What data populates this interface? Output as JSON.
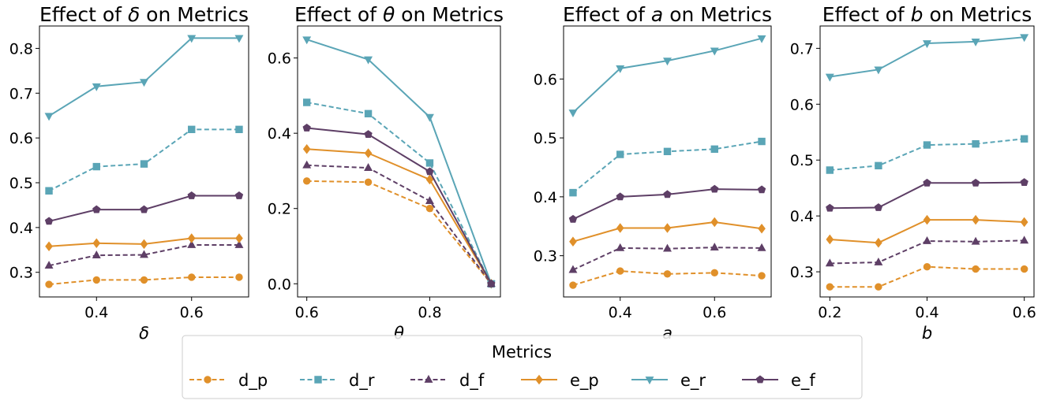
{
  "legend": {
    "title": "Metrics",
    "position": "bottom-center"
  },
  "series_styles": [
    {
      "name": "d_p",
      "color": "#E0902A",
      "dashed": true,
      "marker": "circle"
    },
    {
      "name": "d_r",
      "color": "#5AA5B6",
      "dashed": true,
      "marker": "square"
    },
    {
      "name": "d_f",
      "color": "#5E3F66",
      "dashed": true,
      "marker": "triangle-up"
    },
    {
      "name": "e_p",
      "color": "#E0902A",
      "dashed": false,
      "marker": "diamond"
    },
    {
      "name": "e_r",
      "color": "#5AA5B6",
      "dashed": false,
      "marker": "triangle-down"
    },
    {
      "name": "e_f",
      "color": "#5E3F66",
      "dashed": false,
      "marker": "pentagon"
    }
  ],
  "chart_data": [
    {
      "type": "line",
      "title_prefix": "Effect of ",
      "title_symbol": "δ",
      "title_suffix": " on Metrics",
      "xlabel": "δ",
      "x": [
        0.3,
        0.4,
        0.5,
        0.6,
        0.7
      ],
      "xlim": [
        0.28,
        0.72
      ],
      "ylim": [
        0.245,
        0.85
      ],
      "xticks": [
        0.4,
        0.6
      ],
      "xtick_labels": [
        "0.4",
        "0.6"
      ],
      "yticks": [
        0.3,
        0.4,
        0.5,
        0.6,
        0.7,
        0.8
      ],
      "ytick_labels": [
        "0.3",
        "0.4",
        "0.5",
        "0.6",
        "0.7",
        "0.8"
      ],
      "series": [
        {
          "name": "d_p",
          "values": [
            0.273,
            0.283,
            0.283,
            0.289,
            0.289
          ]
        },
        {
          "name": "d_r",
          "values": [
            0.482,
            0.536,
            0.542,
            0.619,
            0.619
          ]
        },
        {
          "name": "d_f",
          "values": [
            0.315,
            0.338,
            0.339,
            0.361,
            0.361
          ]
        },
        {
          "name": "e_p",
          "values": [
            0.358,
            0.365,
            0.363,
            0.376,
            0.376
          ]
        },
        {
          "name": "e_r",
          "values": [
            0.649,
            0.715,
            0.725,
            0.823,
            0.823
          ]
        },
        {
          "name": "e_f",
          "values": [
            0.414,
            0.44,
            0.44,
            0.471,
            0.471
          ]
        }
      ]
    },
    {
      "type": "line",
      "title_prefix": "Effect of ",
      "title_symbol": "θ",
      "title_suffix": " on Metrics",
      "xlabel": "θ",
      "x": [
        0.6,
        0.7,
        0.8,
        0.9
      ],
      "xlim": [
        0.585,
        0.915
      ],
      "ylim": [
        -0.035,
        0.685
      ],
      "xticks": [
        0.6,
        0.8
      ],
      "xtick_labels": [
        "0.6",
        "0.8"
      ],
      "yticks": [
        0.0,
        0.2,
        0.4,
        0.6
      ],
      "ytick_labels": [
        "0.0",
        "0.2",
        "0.4",
        "0.6"
      ],
      "series": [
        {
          "name": "d_p",
          "values": [
            0.273,
            0.27,
            0.2,
            0.0
          ]
        },
        {
          "name": "d_r",
          "values": [
            0.482,
            0.452,
            0.321,
            0.0
          ]
        },
        {
          "name": "d_f",
          "values": [
            0.315,
            0.308,
            0.22,
            0.0
          ]
        },
        {
          "name": "e_p",
          "values": [
            0.358,
            0.347,
            0.277,
            0.0
          ]
        },
        {
          "name": "e_r",
          "values": [
            0.649,
            0.596,
            0.443,
            0.0
          ]
        },
        {
          "name": "e_f",
          "values": [
            0.414,
            0.397,
            0.298,
            0.0
          ]
        }
      ]
    },
    {
      "type": "line",
      "title_prefix": "Effect of ",
      "title_symbol": "a",
      "title_suffix": " on Metrics",
      "xlabel": "a",
      "x": [
        0.3,
        0.4,
        0.5,
        0.6,
        0.7
      ],
      "xlim": [
        0.28,
        0.72
      ],
      "ylim": [
        0.23,
        0.69
      ],
      "xticks": [
        0.4,
        0.6
      ],
      "xtick_labels": [
        "0.4",
        "0.6"
      ],
      "yticks": [
        0.3,
        0.4,
        0.5,
        0.6
      ],
      "ytick_labels": [
        "0.3",
        "0.4",
        "0.5",
        "0.6"
      ],
      "series": [
        {
          "name": "d_p",
          "values": [
            0.25,
            0.274,
            0.269,
            0.271,
            0.266
          ]
        },
        {
          "name": "d_r",
          "values": [
            0.407,
            0.472,
            0.477,
            0.481,
            0.494
          ]
        },
        {
          "name": "d_f",
          "values": [
            0.276,
            0.313,
            0.312,
            0.314,
            0.313
          ]
        },
        {
          "name": "e_p",
          "values": [
            0.324,
            0.347,
            0.347,
            0.357,
            0.346
          ]
        },
        {
          "name": "e_r",
          "values": [
            0.543,
            0.618,
            0.631,
            0.648,
            0.669
          ]
        },
        {
          "name": "e_f",
          "values": [
            0.362,
            0.4,
            0.404,
            0.413,
            0.412
          ]
        }
      ]
    },
    {
      "type": "line",
      "title_prefix": "Effect of ",
      "title_symbol": "b",
      "title_suffix": " on Metrics",
      "xlabel": "b",
      "x": [
        0.2,
        0.3,
        0.4,
        0.5,
        0.6
      ],
      "xlim": [
        0.18,
        0.62
      ],
      "ylim": [
        0.255,
        0.74
      ],
      "xticks": [
        0.2,
        0.4,
        0.6
      ],
      "xtick_labels": [
        "0.2",
        "0.4",
        "0.6"
      ],
      "yticks": [
        0.3,
        0.4,
        0.5,
        0.6,
        0.7
      ],
      "ytick_labels": [
        "0.3",
        "0.4",
        "0.5",
        "0.6",
        "0.7"
      ],
      "series": [
        {
          "name": "d_p",
          "values": [
            0.273,
            0.273,
            0.309,
            0.305,
            0.305
          ]
        },
        {
          "name": "d_r",
          "values": [
            0.482,
            0.49,
            0.527,
            0.529,
            0.538
          ]
        },
        {
          "name": "d_f",
          "values": [
            0.315,
            0.317,
            0.355,
            0.354,
            0.356
          ]
        },
        {
          "name": "e_p",
          "values": [
            0.358,
            0.352,
            0.393,
            0.393,
            0.389
          ]
        },
        {
          "name": "e_r",
          "values": [
            0.649,
            0.662,
            0.709,
            0.712,
            0.72
          ]
        },
        {
          "name": "e_f",
          "values": [
            0.414,
            0.415,
            0.459,
            0.459,
            0.46
          ]
        }
      ]
    }
  ]
}
